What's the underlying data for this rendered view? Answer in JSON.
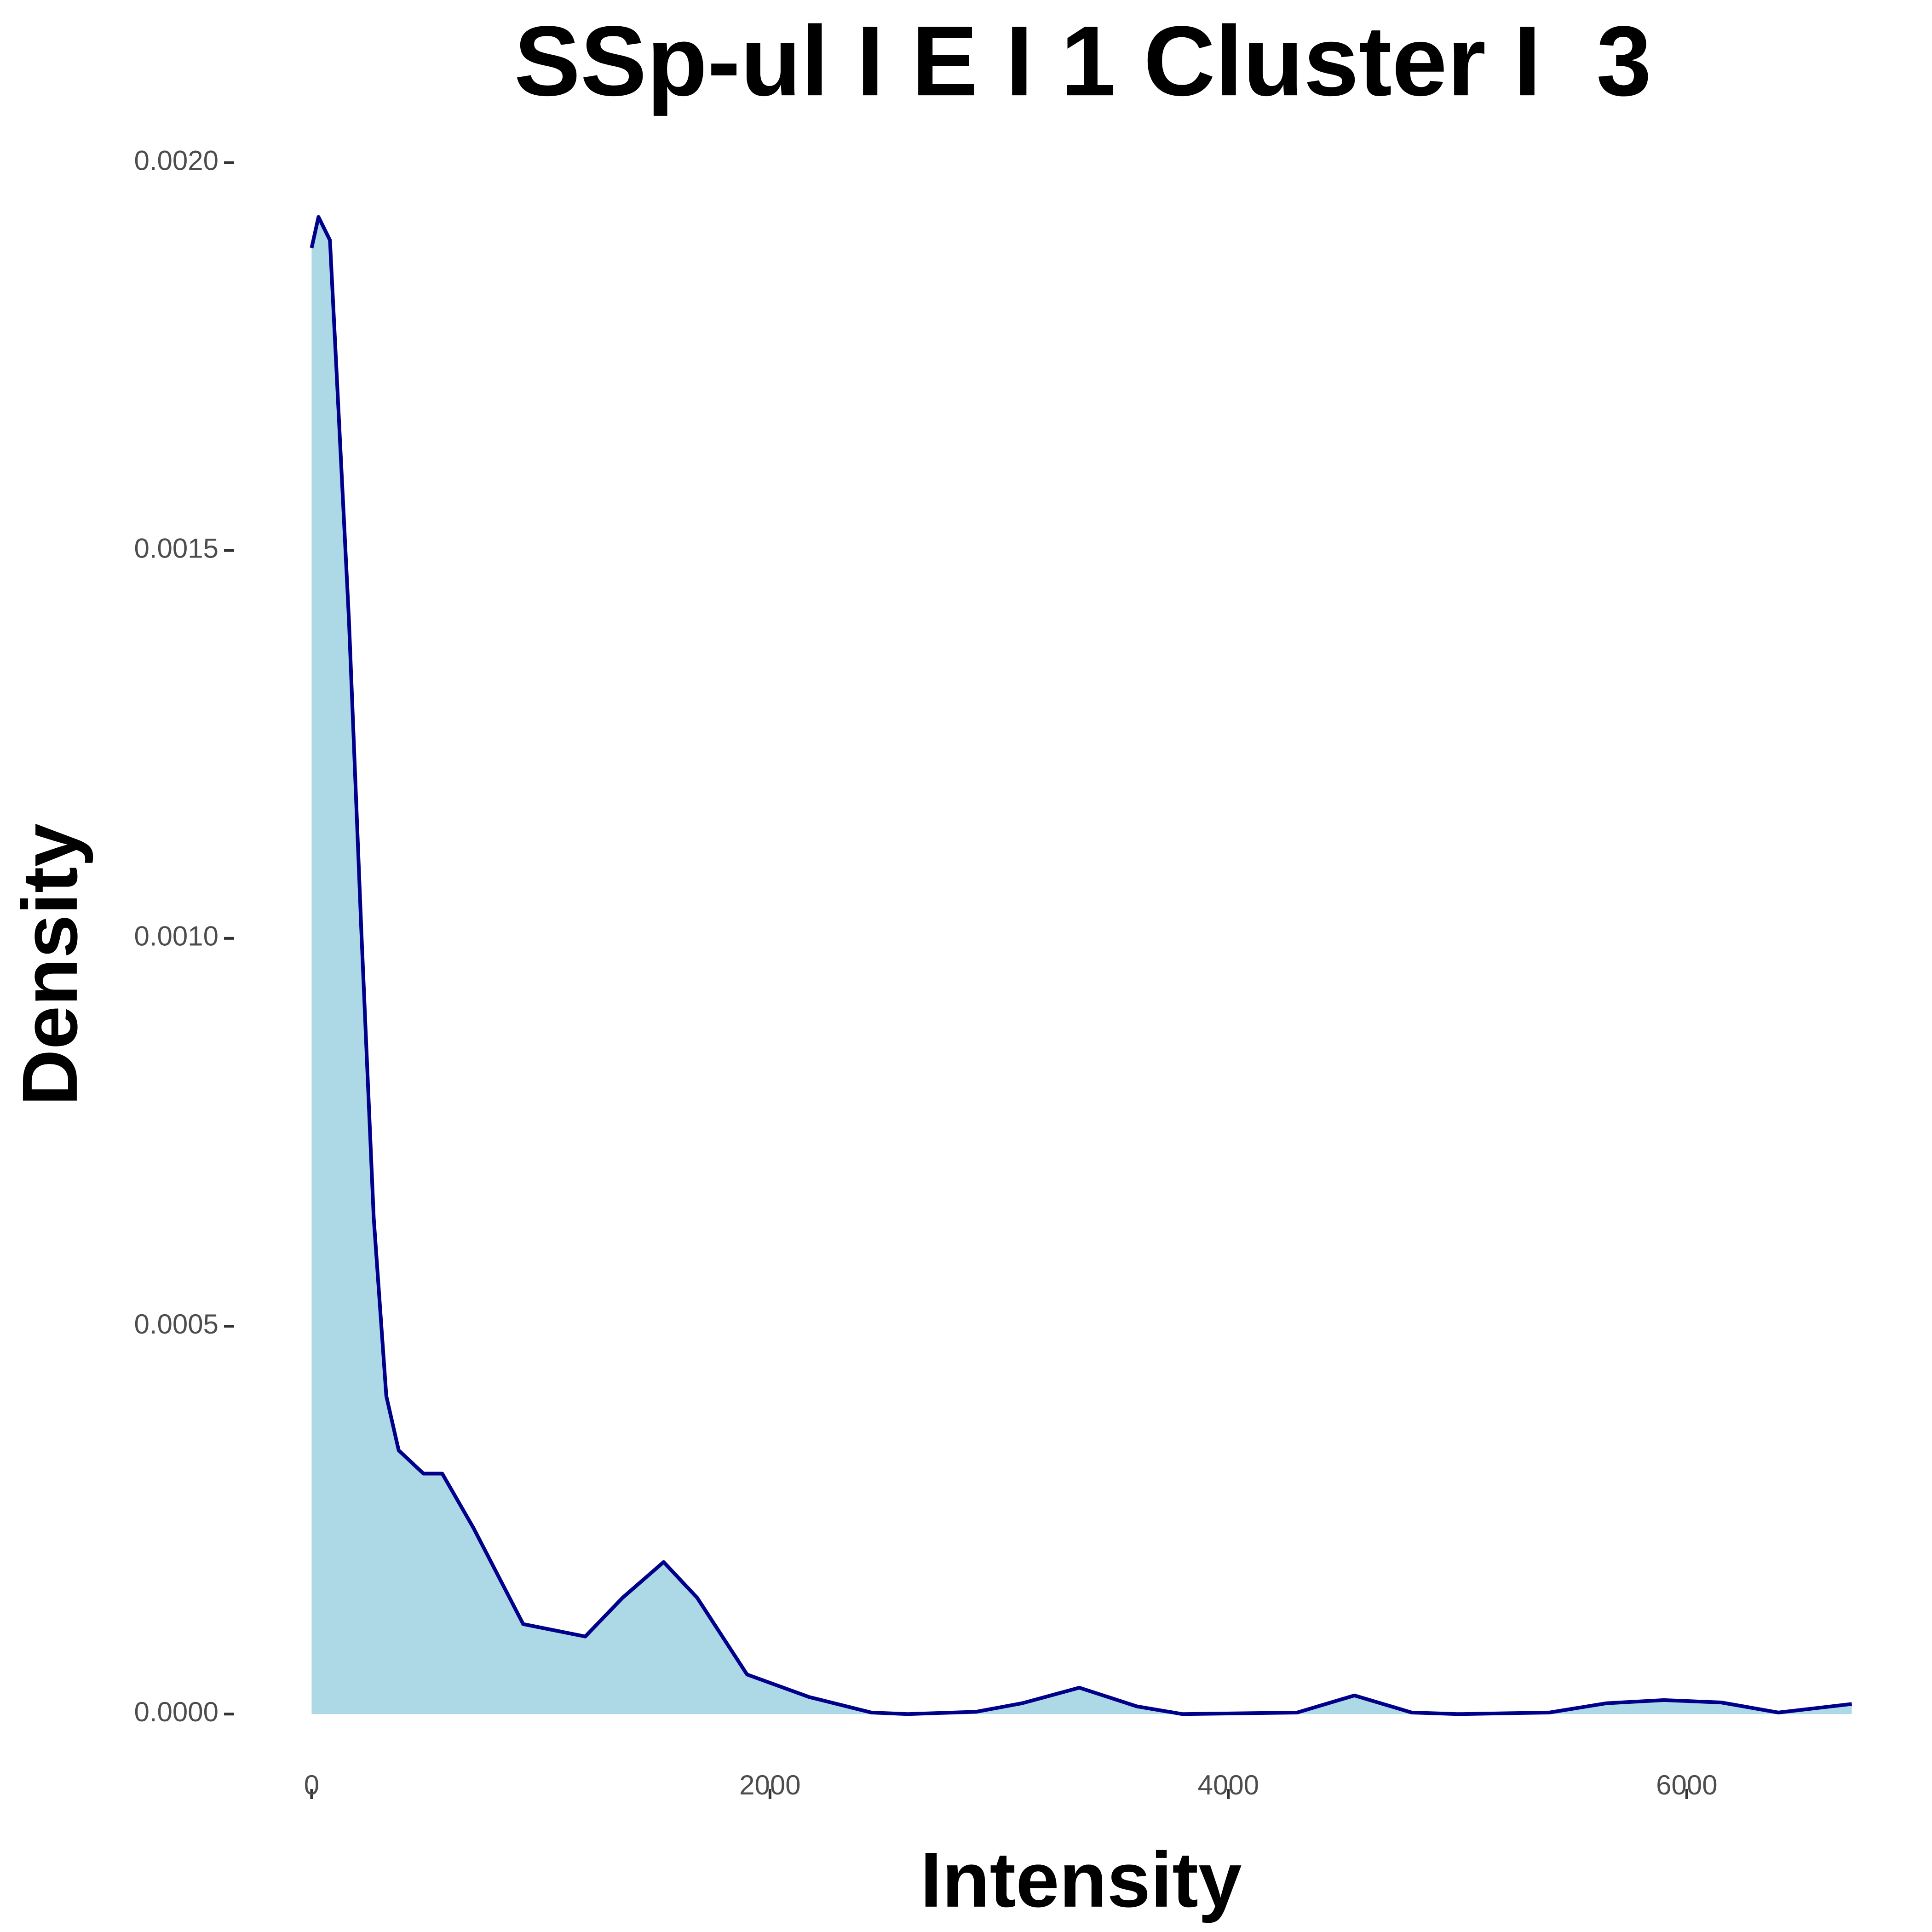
{
  "chart_data": {
    "type": "area",
    "title": "SSp-ul I E I 1 Cluster I  3",
    "x_label": "Intensity",
    "y_label": "Density",
    "x": [
      0,
      30,
      80,
      109,
      163,
      217,
      271,
      326,
      380,
      488,
      570,
      706,
      923,
      1194,
      1357,
      1536,
      1682,
      1900,
      2171,
      2442,
      2600,
      2900,
      3100,
      3350,
      3600,
      3800,
      4300,
      4550,
      4800,
      5000,
      5400,
      5650,
      5900,
      6150,
      6400,
      6720
    ],
    "values": [
      0.00189,
      0.00193,
      0.0019,
      0.00173,
      0.00141,
      0.00101,
      0.00064,
      0.00041,
      0.00034,
      0.00031,
      0.00031,
      0.00024,
      0.000116,
      0.0001,
      0.00015,
      0.000196,
      0.00015,
      5.1e-05,
      2.2e-05,
      2e-06,
      0,
      3e-06,
      1.4e-05,
      3.4e-05,
      1e-05,
      0,
      2e-06,
      2.4e-05,
      2e-06,
      0,
      2e-06,
      1.4e-05,
      1.8e-05,
      1.5e-05,
      2e-06,
      1.3e-05
    ],
    "color": "#00008b",
    "fill": "#add8e6",
    "xlim": [
      -336,
      7056
    ],
    "ylim": [
      -9.65e-05,
      0.002027
    ],
    "xticks": [
      0,
      2000,
      4000,
      6000
    ],
    "yticks": [
      {
        "value": 0,
        "label": "0.0000"
      },
      {
        "value": 0.0005,
        "label": "0.0005"
      },
      {
        "value": 0.001,
        "label": "0.0010"
      },
      {
        "value": 0.0015,
        "label": "0.0015"
      },
      {
        "value": 0.002,
        "label": "0.0020"
      }
    ]
  }
}
